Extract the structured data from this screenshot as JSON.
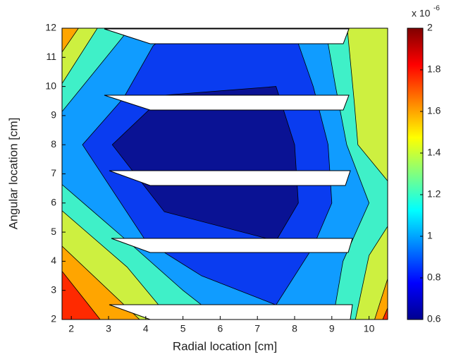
{
  "chart_data": {
    "type": "contour",
    "xlabel": "Radial location [cm]",
    "ylabel": "Angular location [cm]",
    "xlim": [
      1.75,
      10.5
    ],
    "ylim": [
      2,
      12
    ],
    "xticks": [
      2,
      3,
      4,
      5,
      6,
      7,
      8,
      9,
      10
    ],
    "yticks": [
      2,
      3,
      4,
      5,
      6,
      7,
      8,
      9,
      10,
      11,
      12
    ],
    "background_color": "#ff2a00",
    "contours": [
      {
        "color": "#ffa500",
        "x": [
          1.6,
          1.6,
          10.6,
          10.6,
          10.3,
          2.9
        ],
        "y": [
          3.9,
          12.2,
          12.2,
          2.7,
          1.8,
          1.8
        ]
      },
      {
        "color": "#cdf040",
        "x": [
          1.6,
          1.6,
          2.3,
          10.6,
          10.6,
          10.1,
          4.0
        ],
        "y": [
          4.7,
          10.9,
          12.2,
          12.2,
          3.8,
          1.8,
          1.8
        ]
      },
      {
        "color": "#3ff0c8",
        "x": [
          1.6,
          1.6,
          2.8,
          9.4,
          9.6,
          9.7,
          10.6,
          10.6,
          10.0,
          9.6,
          4.8,
          3.5
        ],
        "y": [
          5.9,
          9.8,
          12.2,
          12.2,
          9.5,
          8,
          6.6,
          5.4,
          4.2,
          1.8,
          1.8,
          3.8
        ]
      },
      {
        "color": "#109cff",
        "x": [
          1.6,
          1.6,
          3.7,
          8.8,
          9.1,
          9.4,
          10.0,
          9.3,
          9.0,
          6.2,
          5.0,
          3.5
        ],
        "y": [
          6.8,
          8.9,
          12.2,
          12.2,
          10,
          8,
          6,
          4.0,
          1.8,
          1.8,
          3.0,
          4.7
        ]
      },
      {
        "color": "#0a3cf0",
        "x": [
          2.3,
          3.4,
          4.2,
          5.0,
          7.9,
          8.5,
          8.9,
          9.0,
          8.5,
          7.5,
          5.5,
          4.0
        ],
        "y": [
          8,
          9.6,
          11.4,
          12.2,
          12.2,
          10,
          8,
          6,
          4.5,
          2.5,
          3.5,
          4.7
        ]
      },
      {
        "color": "#0a1294",
        "x": [
          3.1,
          4.5,
          7.5,
          8.0,
          8.1,
          7.5,
          4.5
        ],
        "y": [
          8,
          9.7,
          10,
          8,
          6,
          4.7,
          5.7
        ]
      }
    ],
    "colorbar": {
      "lim": [
        0.6,
        2
      ],
      "ticks": [
        0.6,
        0.8,
        1,
        1.2,
        1.4,
        1.6,
        1.8,
        2
      ],
      "colormap": [
        "#00008f",
        "#0000ff",
        "#0080ff",
        "#00ffff",
        "#80ff80",
        "#ffff00",
        "#ff8000",
        "#ff0000",
        "#800000"
      ],
      "exponent_base": "x 10",
      "exponent_power": "-6"
    }
  }
}
